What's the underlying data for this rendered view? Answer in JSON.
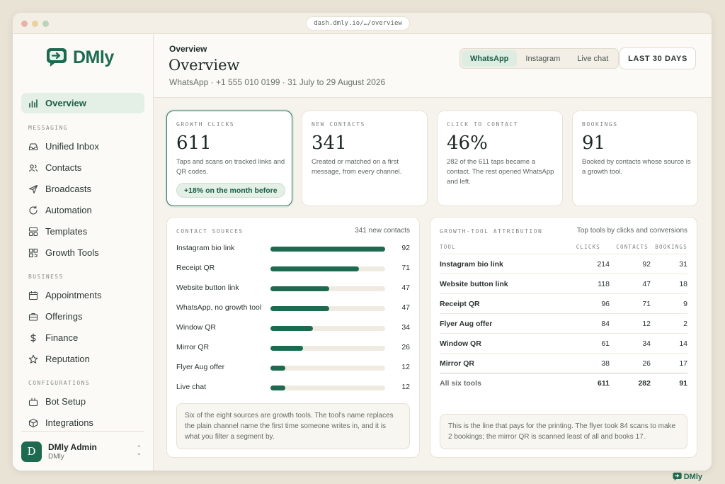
{
  "browser": {
    "url": "dash.dmly.io/…/overview"
  },
  "brand": {
    "name": "DMly",
    "accent": "#1e6a50"
  },
  "sidebar": {
    "top_item": {
      "label": "Overview",
      "icon": "bar-chart-icon",
      "active": true
    },
    "sections": [
      {
        "label": "MESSAGING",
        "items": [
          {
            "label": "Unified Inbox",
            "icon": "inbox-icon"
          },
          {
            "label": "Contacts",
            "icon": "users-icon"
          },
          {
            "label": "Broadcasts",
            "icon": "send-icon"
          },
          {
            "label": "Automation",
            "icon": "refresh-icon"
          },
          {
            "label": "Templates",
            "icon": "template-icon"
          },
          {
            "label": "Growth Tools",
            "icon": "qr-icon"
          }
        ]
      },
      {
        "label": "BUSINESS",
        "items": [
          {
            "label": "Appointments",
            "icon": "calendar-icon"
          },
          {
            "label": "Offerings",
            "icon": "briefcase-icon"
          },
          {
            "label": "Finance",
            "icon": "dollar-icon"
          },
          {
            "label": "Reputation",
            "icon": "star-icon"
          }
        ]
      },
      {
        "label": "CONFIGURATIONS",
        "items": [
          {
            "label": "Bot Setup",
            "icon": "bot-icon"
          },
          {
            "label": "Integrations",
            "icon": "cube-icon"
          }
        ]
      }
    ],
    "user": {
      "initial": "D",
      "name": "DMly Admin",
      "org": "DMly"
    }
  },
  "header": {
    "breadcrumb": "Overview",
    "title": "Overview",
    "subtitle": "WhatsApp · +1 555 010 0199 · 31 July to 29 August 2026",
    "channels": [
      "WhatsApp",
      "Instagram",
      "Live chat"
    ],
    "active_channel": "WhatsApp",
    "range": "LAST 30 DAYS"
  },
  "metrics": [
    {
      "label": "GROWTH CLICKS",
      "value": "611",
      "desc": "Taps and scans on tracked links and QR codes.",
      "badge": "+18% on the month before"
    },
    {
      "label": "NEW CONTACTS",
      "value": "341",
      "desc": "Created or matched on a first message, from every channel."
    },
    {
      "label": "CLICK TO CONTACT",
      "value": "46%",
      "desc": "282 of the 611 taps became a contact. The rest opened WhatsApp and left."
    },
    {
      "label": "BOOKINGS",
      "value": "91",
      "desc": "Booked by contacts whose source is a growth tool."
    }
  ],
  "sources": {
    "label": "CONTACT SOURCES",
    "total": "341 new contacts",
    "max": 92,
    "rows": [
      {
        "name": "Instagram bio link",
        "value": 92
      },
      {
        "name": "Receipt QR",
        "value": 71
      },
      {
        "name": "Website button link",
        "value": 47
      },
      {
        "name": "WhatsApp, no growth tool",
        "value": 47
      },
      {
        "name": "Window QR",
        "value": 34
      },
      {
        "name": "Mirror QR",
        "value": 26
      },
      {
        "name": "Flyer Aug offer",
        "value": 12
      },
      {
        "name": "Live chat",
        "value": 12
      }
    ],
    "note": "Six of the eight sources are growth tools. The tool's name replaces the plain channel name the first time someone writes in, and it is what you filter a segment by."
  },
  "attribution": {
    "label": "GROWTH-TOOL ATTRIBUTION",
    "caption": "Top tools by clicks and conversions",
    "columns": [
      "TOOL",
      "CLICKS",
      "CONTACTS",
      "BOOKINGS"
    ],
    "rows": [
      {
        "tool": "Instagram bio link",
        "clicks": "214",
        "contacts": "92",
        "bookings": "31"
      },
      {
        "tool": "Website button link",
        "clicks": "118",
        "contacts": "47",
        "bookings": "18"
      },
      {
        "tool": "Receipt QR",
        "clicks": "96",
        "contacts": "71",
        "bookings": "9"
      },
      {
        "tool": "Flyer Aug offer",
        "clicks": "84",
        "contacts": "12",
        "bookings": "2"
      },
      {
        "tool": "Window QR",
        "clicks": "61",
        "contacts": "34",
        "bookings": "14"
      },
      {
        "tool": "Mirror QR",
        "clicks": "38",
        "contacts": "26",
        "bookings": "17"
      }
    ],
    "total": {
      "tool": "All six tools",
      "clicks": "611",
      "contacts": "282",
      "bookings": "91"
    },
    "note": "This is the line that pays for the printing. The flyer took 84 scans to make 2 bookings; the mirror QR is scanned least of all and books 17."
  },
  "footer_brand": "DMly"
}
